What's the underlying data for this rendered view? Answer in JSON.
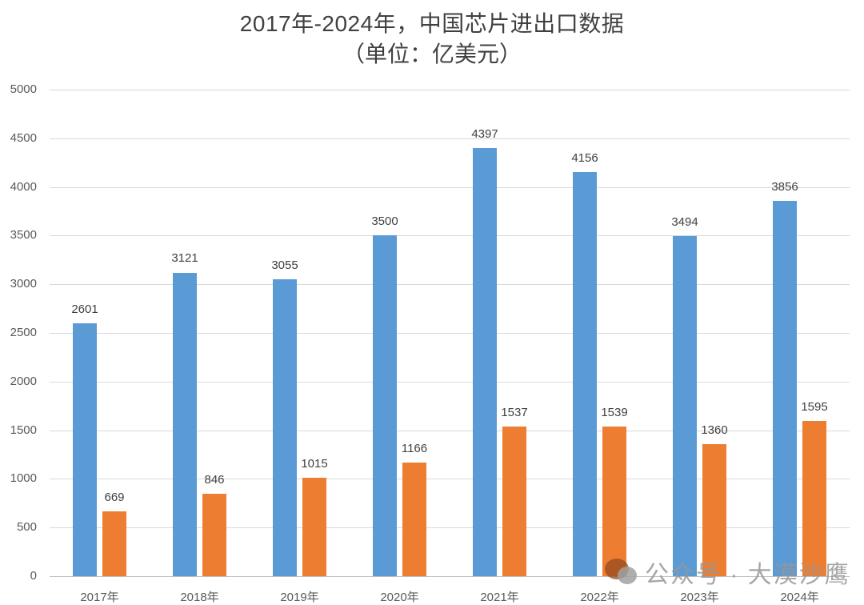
{
  "title": {
    "line1": "2017年-2024年，中国芯片进出口数据",
    "line2": "（单位：亿美元）"
  },
  "watermark": {
    "icon": "wechat-icon",
    "text": "公众号 · 大漠沙鹰"
  },
  "colors": {
    "series_blue": "#5b9bd5",
    "series_orange": "#ed7d31",
    "gridline": "#d9d9d9"
  },
  "y_axis": {
    "ticks": [
      "0",
      "500",
      "1000",
      "1500",
      "2000",
      "2500",
      "3000",
      "3500",
      "4000",
      "4500",
      "5000"
    ]
  },
  "x_axis": {
    "labels": [
      "2017年",
      "2018年",
      "2019年",
      "2020年",
      "2021年",
      "2022年",
      "2023年",
      "2024年"
    ]
  },
  "data_labels": {
    "blue": [
      "2601",
      "3121",
      "3055",
      "3500",
      "4397",
      "4156",
      "3494",
      "3856"
    ],
    "orange": [
      "669",
      "846",
      "1015",
      "1166",
      "1537",
      "1539",
      "1360",
      "1595"
    ]
  },
  "chart_data": {
    "type": "bar",
    "title": "2017年-2024年，中国芯片进出口数据（单位：亿美元）",
    "xlabel": "",
    "ylabel": "",
    "categories": [
      "2017年",
      "2018年",
      "2019年",
      "2020年",
      "2021年",
      "2022年",
      "2023年",
      "2024年"
    ],
    "series": [
      {
        "name": "blue series (unlabeled)",
        "color": "#5b9bd5",
        "values": [
          2601,
          3121,
          3055,
          3500,
          4397,
          4156,
          3494,
          3856
        ]
      },
      {
        "name": "orange series (unlabeled)",
        "color": "#ed7d31",
        "values": [
          669,
          846,
          1015,
          1166,
          1537,
          1539,
          1360,
          1595
        ]
      }
    ],
    "ylim": [
      0,
      5000
    ],
    "ytick_step": 500,
    "grid": true,
    "legend": "none",
    "data_labels": true
  }
}
